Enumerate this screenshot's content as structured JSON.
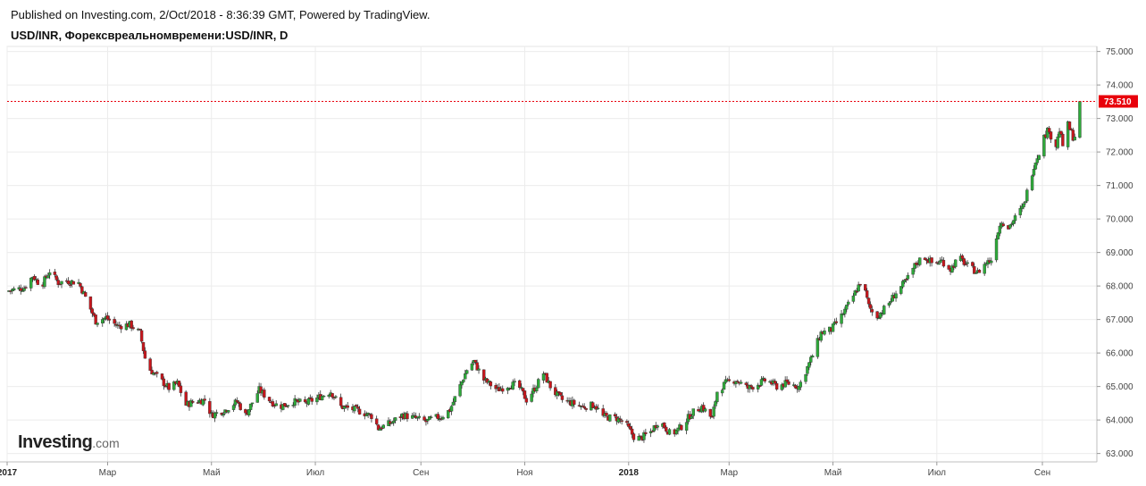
{
  "header": {
    "published": "Published on Investing.com, 2/Oct/2018 - 8:36:39 GMT, Powered by TradingView.",
    "symbol": "USD/INR, Форексвреальномвремени:USD/INR, D"
  },
  "logo": {
    "main": "Investing",
    "suffix": ".com"
  },
  "colors": {
    "up": "#2eaa3a",
    "down": "#c8161c",
    "price_line": "#e8000b",
    "grid": "#ececec"
  },
  "chart_data": {
    "type": "candlestick",
    "title": "USD/INR, Форексвреальномвремени:USD/INR, D",
    "ylim": [
      62.75,
      75.15
    ],
    "y_ticks": [
      "63.000",
      "64.000",
      "65.000",
      "66.000",
      "67.000",
      "68.000",
      "69.000",
      "70.000",
      "71.000",
      "72.000",
      "73.000",
      "74.000",
      "75.000"
    ],
    "x_ticks": [
      {
        "label": "2017",
        "bold": true,
        "day": 0
      },
      {
        "label": "Мар",
        "bold": false,
        "day": 59
      },
      {
        "label": "Май",
        "bold": false,
        "day": 120
      },
      {
        "label": "Июл",
        "bold": false,
        "day": 181
      },
      {
        "label": "Сен",
        "bold": false,
        "day": 243
      },
      {
        "label": "Ноя",
        "bold": false,
        "day": 304
      },
      {
        "label": "2018",
        "bold": true,
        "day": 365
      },
      {
        "label": "Мар",
        "bold": false,
        "day": 424
      },
      {
        "label": "Май",
        "bold": false,
        "day": 485
      },
      {
        "label": "Июл",
        "bold": false,
        "day": 546
      },
      {
        "label": "Сен",
        "bold": false,
        "day": 608
      }
    ],
    "last_price": 73.51,
    "last_price_label": "73.510",
    "close_path": [
      [
        0,
        67.85
      ],
      [
        10,
        67.95
      ],
      [
        15,
        68.3
      ],
      [
        20,
        68.0
      ],
      [
        25,
        68.45
      ],
      [
        30,
        68.1
      ],
      [
        35,
        68.15
      ],
      [
        42,
        68.1
      ],
      [
        47,
        67.55
      ],
      [
        52,
        66.95
      ],
      [
        58,
        67.05
      ],
      [
        65,
        66.8
      ],
      [
        72,
        66.85
      ],
      [
        78,
        66.6
      ],
      [
        82,
        65.6
      ],
      [
        88,
        65.3
      ],
      [
        95,
        64.95
      ],
      [
        100,
        65.1
      ],
      [
        105,
        64.45
      ],
      [
        110,
        64.55
      ],
      [
        116,
        64.6
      ],
      [
        120,
        64.15
      ],
      [
        128,
        64.3
      ],
      [
        135,
        64.55
      ],
      [
        140,
        64.15
      ],
      [
        148,
        64.9
      ],
      [
        155,
        64.55
      ],
      [
        160,
        64.4
      ],
      [
        168,
        64.55
      ],
      [
        175,
        64.5
      ],
      [
        182,
        64.65
      ],
      [
        190,
        64.85
      ],
      [
        196,
        64.4
      ],
      [
        205,
        64.3
      ],
      [
        215,
        64.1
      ],
      [
        218,
        63.75
      ],
      [
        225,
        63.9
      ],
      [
        232,
        64.15
      ],
      [
        240,
        64.05
      ],
      [
        246,
        63.95
      ],
      [
        250,
        64.05
      ],
      [
        255,
        64.1
      ],
      [
        260,
        64.3
      ],
      [
        265,
        64.9
      ],
      [
        270,
        65.5
      ],
      [
        274,
        65.75
      ],
      [
        280,
        65.2
      ],
      [
        288,
        64.9
      ],
      [
        295,
        65.05
      ],
      [
        300,
        65.05
      ],
      [
        305,
        64.6
      ],
      [
        310,
        64.95
      ],
      [
        315,
        65.4
      ],
      [
        320,
        64.9
      ],
      [
        326,
        64.6
      ],
      [
        332,
        64.5
      ],
      [
        338,
        64.4
      ],
      [
        345,
        64.45
      ],
      [
        350,
        64.1
      ],
      [
        358,
        64.05
      ],
      [
        363,
        63.9
      ],
      [
        368,
        63.5
      ],
      [
        372,
        63.45
      ],
      [
        378,
        63.65
      ],
      [
        383,
        64.0
      ],
      [
        390,
        63.55
      ],
      [
        396,
        63.8
      ],
      [
        402,
        64.2
      ],
      [
        408,
        64.4
      ],
      [
        414,
        64.05
      ],
      [
        417,
        64.85
      ],
      [
        422,
        65.1
      ],
      [
        428,
        65.2
      ],
      [
        435,
        64.95
      ],
      [
        440,
        65.05
      ],
      [
        446,
        65.2
      ],
      [
        452,
        65.0
      ],
      [
        458,
        65.1
      ],
      [
        465,
        65.0
      ],
      [
        472,
        65.8
      ],
      [
        478,
        66.6
      ],
      [
        484,
        66.7
      ],
      [
        490,
        67.1
      ],
      [
        496,
        67.6
      ],
      [
        502,
        68.2
      ],
      [
        506,
        67.4
      ],
      [
        510,
        67.05
      ],
      [
        514,
        67.25
      ],
      [
        518,
        67.5
      ],
      [
        522,
        67.8
      ],
      [
        528,
        68.15
      ],
      [
        533,
        68.6
      ],
      [
        538,
        68.9
      ],
      [
        544,
        68.65
      ],
      [
        549,
        68.75
      ],
      [
        554,
        68.5
      ],
      [
        559,
        68.85
      ],
      [
        564,
        68.6
      ],
      [
        570,
        68.4
      ],
      [
        575,
        68.7
      ],
      [
        579,
        68.8
      ],
      [
        581,
        69.5
      ],
      [
        584,
        69.95
      ],
      [
        588,
        69.75
      ],
      [
        593,
        70.1
      ],
      [
        597,
        70.4
      ],
      [
        600,
        71.0
      ],
      [
        603,
        71.6
      ],
      [
        606,
        72.0
      ],
      [
        609,
        72.45
      ],
      [
        612,
        72.7
      ],
      [
        615,
        71.95
      ],
      [
        618,
        72.65
      ],
      [
        620,
        72.2
      ],
      [
        623,
        72.8
      ],
      [
        626,
        72.45
      ],
      [
        628,
        72.5
      ],
      [
        630,
        73.51
      ]
    ]
  }
}
